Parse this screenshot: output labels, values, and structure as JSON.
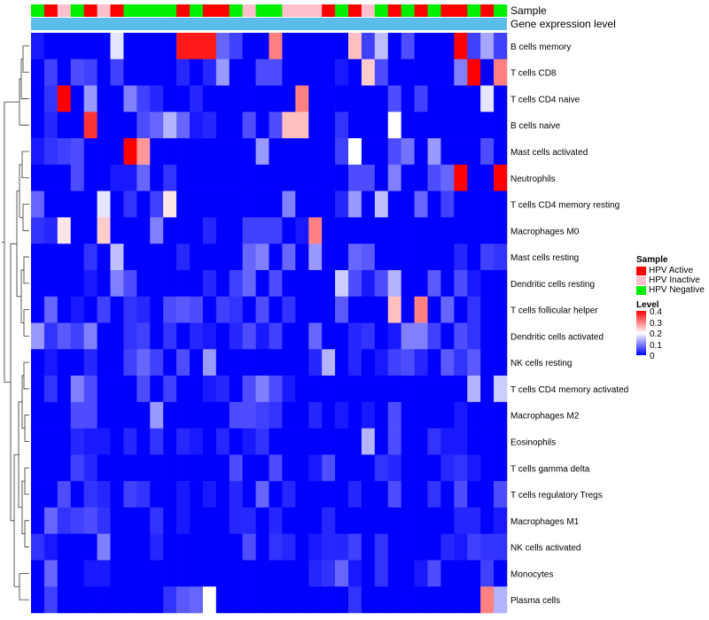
{
  "chart_data": {
    "type": "heatmap",
    "title": "",
    "annotation_labels": [
      "Sample",
      "Gene expression level"
    ],
    "sample_legend": {
      "title": "Sample",
      "entries": [
        {
          "label": "HPV Active",
          "color": "#ff0000"
        },
        {
          "label": "HPV Inactive",
          "color": "#ffc0cb"
        },
        {
          "label": "HPV Negative",
          "color": "#00ee00"
        }
      ]
    },
    "level_legend": {
      "title": "Level",
      "ticks": [
        "0.4",
        "0.3",
        "0.2",
        "0.1",
        "0"
      ],
      "range": [
        0,
        0.4
      ],
      "colors": {
        "low": "#0000ff",
        "mid": "#ffffff",
        "high": "#ff0000"
      }
    },
    "expression_bar_color": "#5dbdea",
    "sample_groups": [
      2,
      0,
      1,
      2,
      0,
      1,
      0,
      2,
      2,
      2,
      2,
      0,
      2,
      0,
      0,
      2,
      1,
      2,
      2,
      1,
      1,
      1,
      0,
      2,
      0,
      1,
      2,
      0,
      2,
      0,
      2,
      0,
      0,
      2,
      0,
      2
    ],
    "rows": [
      "B cells memory",
      "T cells CD8",
      "T cells CD4 naive",
      "B cells naive",
      "Mast cells activated",
      "Neutrophils",
      "T cells CD4 memory resting",
      "Macrophages M0",
      "Mast cells resting",
      "Dendritic cells resting",
      "T cells follicular helper",
      "Dendritic cells activated",
      "NK cells resting",
      "T cells CD4 memory activated",
      "Macrophages M2",
      "Eosinophils",
      "T cells gamma delta",
      "T cells regulatory  Tregs",
      "Macrophages M1",
      "NK cells activated",
      "Monocytes",
      "Plasma cells"
    ],
    "values": [
      [
        0.02,
        0,
        0,
        0,
        0,
        0,
        0.18,
        0,
        0,
        0,
        0,
        0.38,
        0.38,
        0.38,
        0.08,
        0.05,
        0,
        0,
        0.3,
        0,
        0,
        0,
        0,
        0,
        0.25,
        0.05,
        0.15,
        0,
        0.06,
        0,
        0,
        0,
        0.4,
        0.05,
        0.13,
        0.05
      ],
      [
        0,
        0.05,
        0,
        0.06,
        0.05,
        0,
        0.05,
        0,
        0,
        0,
        0,
        0.03,
        0,
        0.03,
        0.12,
        0,
        0,
        0.06,
        0.06,
        0,
        0,
        0,
        0,
        0.02,
        0,
        0.24,
        0.06,
        0,
        0,
        0,
        0,
        0,
        0.1,
        0.4,
        0,
        0.3
      ],
      [
        0,
        0.04,
        0.4,
        0,
        0.12,
        0,
        0,
        0.1,
        0.05,
        0.03,
        0,
        0,
        0.03,
        0,
        0,
        0,
        0,
        0,
        0,
        0,
        0.3,
        0,
        0,
        0,
        0,
        0,
        0,
        0.06,
        0,
        0.05,
        0,
        0,
        0,
        0,
        0.18,
        0
      ],
      [
        0,
        0.03,
        0,
        0,
        0.36,
        0,
        0,
        0,
        0.06,
        0.08,
        0.14,
        0.08,
        0.02,
        0.03,
        0,
        0,
        0.06,
        0,
        0.06,
        0.25,
        0.25,
        0,
        0,
        0.04,
        0,
        0,
        0,
        0.2,
        0,
        0,
        0,
        0,
        0,
        0,
        0,
        0
      ],
      [
        0.02,
        0.04,
        0.05,
        0.06,
        0,
        0,
        0,
        0.4,
        0.28,
        0,
        0,
        0,
        0,
        0,
        0,
        0,
        0,
        0.12,
        0,
        0,
        0,
        0,
        0,
        0.05,
        0.2,
        0,
        0,
        0.06,
        0.09,
        0,
        0.12,
        0,
        0,
        0,
        0.06,
        0
      ],
      [
        0,
        0,
        0,
        0.06,
        0,
        0,
        0.02,
        0.02,
        0.08,
        0,
        0.04,
        0,
        0,
        0,
        0,
        0,
        0,
        0,
        0,
        0,
        0,
        0,
        0,
        0,
        0.06,
        0.06,
        0,
        0.1,
        0,
        0,
        0.06,
        0.08,
        0.4,
        0,
        0,
        0.4
      ],
      [
        0.08,
        0,
        0,
        0,
        0,
        0.18,
        0,
        0.04,
        0,
        0.05,
        0.22,
        0,
        0,
        0,
        0,
        0,
        0,
        0,
        0,
        0.1,
        0,
        0,
        0,
        0.03,
        0.12,
        0,
        0.15,
        0,
        0,
        0.08,
        0,
        0.05,
        0,
        0,
        0,
        0
      ],
      [
        0.04,
        0.03,
        0.22,
        0,
        0,
        0.24,
        0,
        0,
        0,
        0.1,
        0,
        0,
        0,
        0.03,
        0,
        0,
        0.05,
        0.05,
        0.05,
        0,
        0.02,
        0.3,
        0,
        0,
        0,
        0,
        0,
        0,
        0,
        0,
        0,
        0,
        0,
        0,
        0,
        0
      ],
      [
        0,
        0,
        0,
        0,
        0.04,
        0,
        0.15,
        0,
        0,
        0,
        0,
        0.03,
        0,
        0,
        0,
        0,
        0.08,
        0.1,
        0,
        0.08,
        0,
        0.12,
        0,
        0,
        0.08,
        0.07,
        0,
        0,
        0,
        0,
        0,
        0,
        0.03,
        0,
        0.05,
        0.04
      ],
      [
        0,
        0,
        0,
        0,
        0.02,
        0,
        0.1,
        0.06,
        0,
        0,
        0,
        0,
        0,
        0.03,
        0,
        0.05,
        0.08,
        0,
        0.06,
        0,
        0,
        0,
        0,
        0.16,
        0.06,
        0.02,
        0.06,
        0.14,
        0,
        0,
        0.07,
        0,
        0.06,
        0.02,
        0,
        0
      ],
      [
        0,
        0.08,
        0,
        0.02,
        0,
        0.05,
        0,
        0.04,
        0.03,
        0,
        0.06,
        0.07,
        0.06,
        0,
        0.05,
        0.04,
        0,
        0.06,
        0,
        0.04,
        0,
        0,
        0,
        0.07,
        0,
        0,
        0,
        0.25,
        0,
        0.3,
        0,
        0.08,
        0,
        0.04,
        0,
        0
      ],
      [
        0.12,
        0.04,
        0.07,
        0.05,
        0.1,
        0,
        0,
        0.04,
        0.05,
        0,
        0.04,
        0,
        0.03,
        0.02,
        0,
        0.03,
        0.06,
        0.02,
        0.05,
        0,
        0,
        0.08,
        0,
        0,
        0.03,
        0.04,
        0,
        0.02,
        0.1,
        0.1,
        0.05,
        0,
        0.06,
        0.04,
        0,
        0
      ],
      [
        0,
        0.02,
        0,
        0,
        0.03,
        0,
        0,
        0.05,
        0.08,
        0.05,
        0,
        0.06,
        0,
        0.12,
        0,
        0,
        0,
        0,
        0,
        0,
        0,
        0.03,
        0.14,
        0,
        0.03,
        0,
        0.02,
        0.05,
        0.06,
        0.03,
        0,
        0.07,
        0.04,
        0.07,
        0,
        0
      ],
      [
        0,
        0.04,
        0,
        0.1,
        0.06,
        0,
        0,
        0,
        0.06,
        0,
        0.05,
        0,
        0,
        0.02,
        0.03,
        0,
        0.06,
        0.1,
        0.06,
        0.02,
        0,
        0,
        0,
        0,
        0,
        0,
        0,
        0,
        0,
        0,
        0,
        0,
        0,
        0.14,
        0,
        0.16
      ],
      [
        0,
        0,
        0,
        0.06,
        0.06,
        0,
        0,
        0,
        0,
        0.12,
        0,
        0,
        0,
        0,
        0,
        0.06,
        0.06,
        0.05,
        0.04,
        0,
        0,
        0.03,
        0,
        0.02,
        0,
        0.02,
        0,
        0.06,
        0,
        0,
        0,
        0,
        0.02,
        0,
        0,
        0
      ],
      [
        0,
        0,
        0,
        0.03,
        0.02,
        0.02,
        0,
        0.03,
        0,
        0.04,
        0,
        0.03,
        0.02,
        0,
        0.03,
        0,
        0.02,
        0.04,
        0,
        0,
        0,
        0,
        0,
        0,
        0,
        0.14,
        0,
        0.06,
        0,
        0,
        0.04,
        0.02,
        0.02,
        0,
        0,
        0
      ],
      [
        0,
        0,
        0,
        0.05,
        0.03,
        0,
        0,
        0,
        0,
        0,
        0,
        0,
        0,
        0,
        0,
        0.06,
        0,
        0,
        0.06,
        0,
        0,
        0.02,
        0.06,
        0,
        0,
        0,
        0.04,
        0.03,
        0,
        0,
        0,
        0.03,
        0.04,
        0.02,
        0,
        0
      ],
      [
        0,
        0,
        0.06,
        0,
        0.04,
        0.03,
        0,
        0.05,
        0.04,
        0,
        0,
        0.02,
        0,
        0.02,
        0,
        0.03,
        0,
        0.08,
        0,
        0.03,
        0,
        0,
        0,
        0,
        0.03,
        0,
        0,
        0.06,
        0,
        0,
        0.04,
        0,
        0.06,
        0,
        0,
        0.06
      ],
      [
        0,
        0.08,
        0.04,
        0.05,
        0.06,
        0.04,
        0,
        0,
        0,
        0.04,
        0,
        0.02,
        0,
        0,
        0,
        0.03,
        0.03,
        0,
        0.03,
        0,
        0,
        0,
        0.03,
        0,
        0,
        0,
        0,
        0,
        0,
        0,
        0,
        0,
        0.03,
        0.03,
        0,
        0.02
      ],
      [
        0.04,
        0.02,
        0,
        0,
        0,
        0.1,
        0,
        0,
        0,
        0.03,
        0,
        0,
        0,
        0,
        0,
        0,
        0.06,
        0,
        0.04,
        0.03,
        0,
        0.02,
        0.03,
        0.03,
        0.05,
        0,
        0.04,
        0,
        0,
        0,
        0,
        0.03,
        0.02,
        0.05,
        0.04,
        0.04
      ],
      [
        0,
        0.08,
        0,
        0,
        0.02,
        0.02,
        0,
        0,
        0,
        0,
        0,
        0,
        0,
        0,
        0,
        0,
        0,
        0,
        0,
        0,
        0,
        0.03,
        0.04,
        0.08,
        0.02,
        0,
        0.04,
        0,
        0,
        0.02,
        0.06,
        0,
        0,
        0,
        0.05,
        0
      ],
      [
        0,
        0.05,
        0,
        0,
        0,
        0,
        0,
        0,
        0,
        0,
        0.04,
        0.07,
        0.08,
        0.2,
        0,
        0,
        0,
        0,
        0,
        0,
        0,
        0,
        0,
        0,
        0.04,
        0,
        0,
        0,
        0,
        0,
        0,
        0,
        0,
        0,
        0.3,
        0.14
      ]
    ]
  }
}
